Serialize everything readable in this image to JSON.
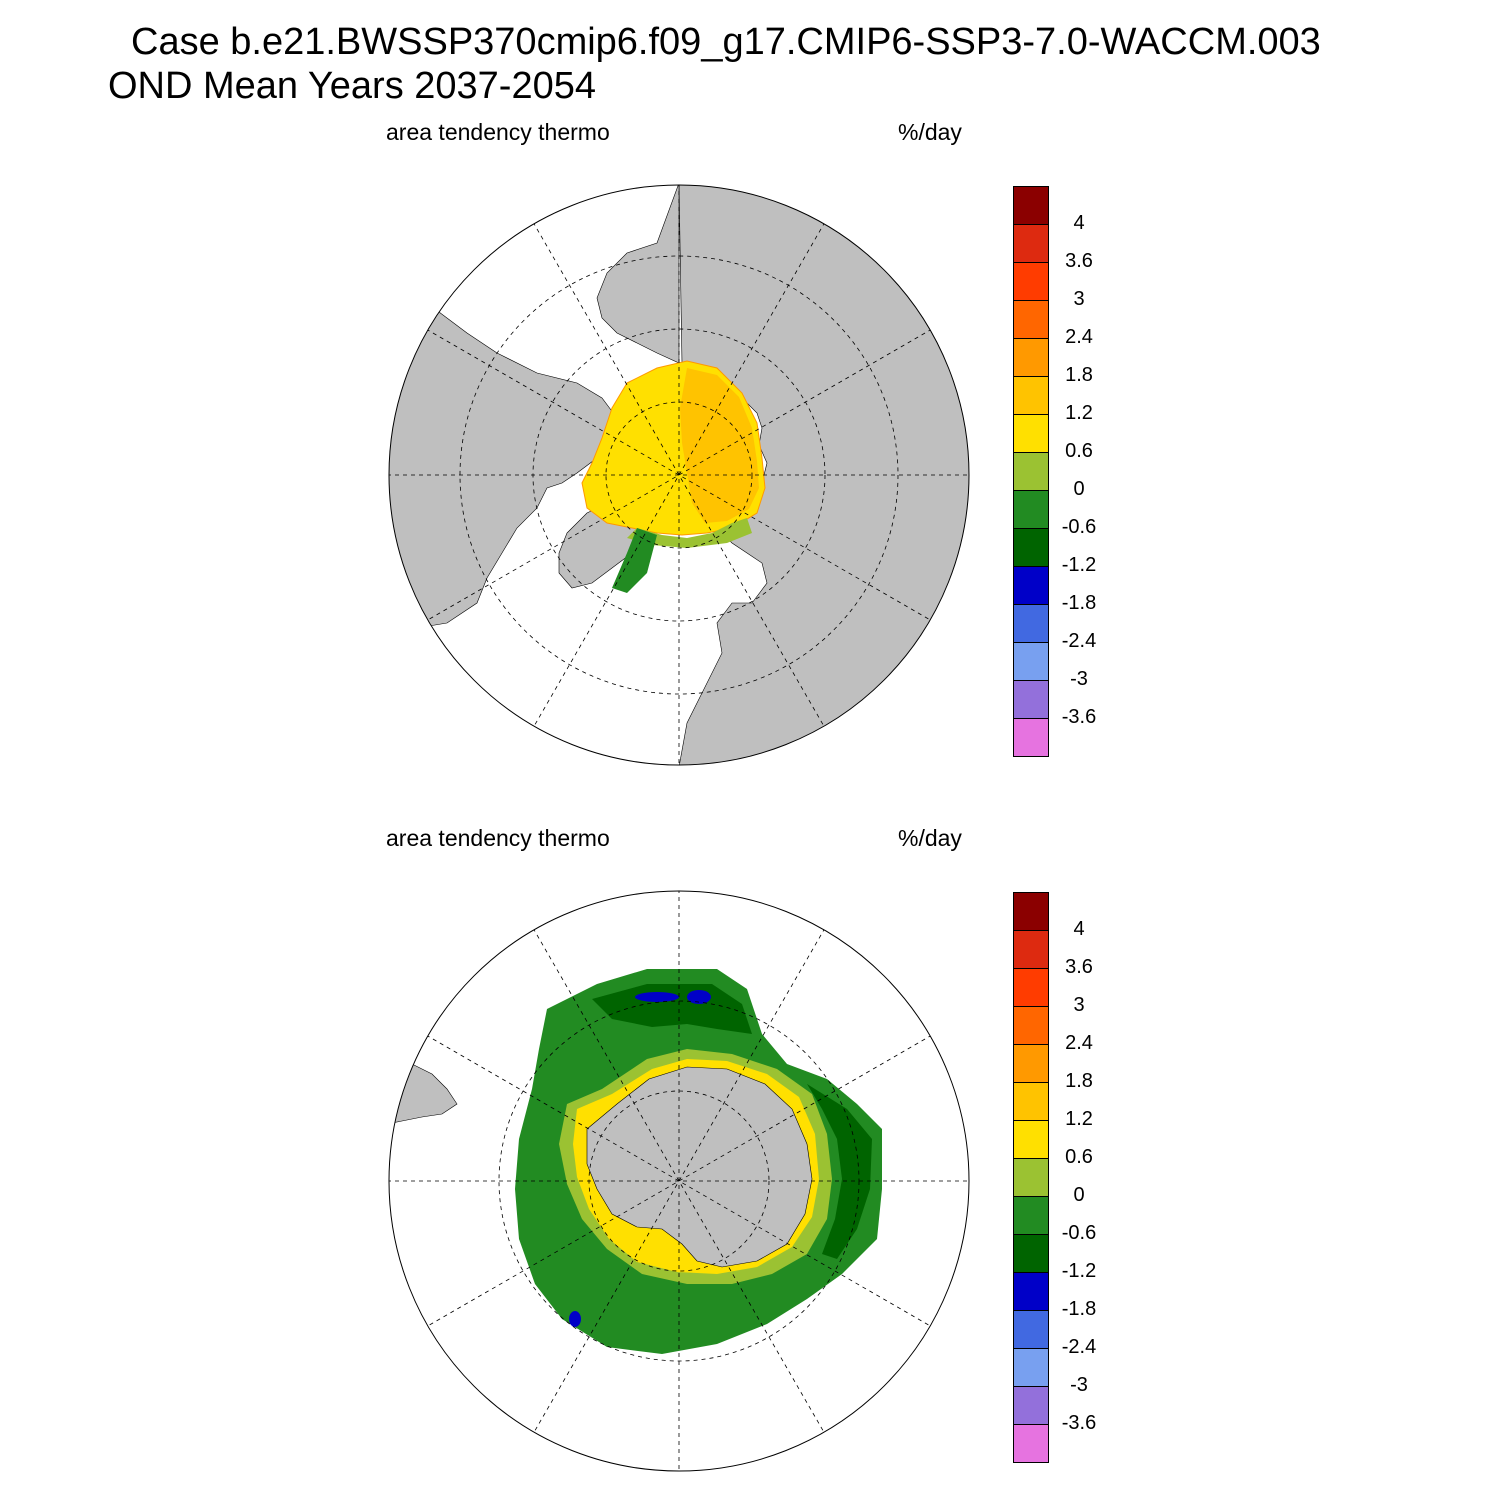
{
  "title": {
    "line1": "Case b.e21.BWSSP370cmip6.f09_g17.CMIP6-SSP3-7.0-WACCM.003",
    "line2": "OND Mean   Years 2037-2054"
  },
  "panels": [
    {
      "id": "north",
      "variable": "area tendency thermo",
      "units": "%/day"
    },
    {
      "id": "south",
      "variable": "area tendency thermo",
      "units": "%/day"
    }
  ],
  "colorbar": {
    "colors": [
      "#8b0000",
      "#dd2a10",
      "#ff3c00",
      "#ff6600",
      "#ff9900",
      "#ffc300",
      "#ffe000",
      "#9bc232",
      "#228b22",
      "#006400",
      "#0000c8",
      "#4169e1",
      "#78a0f0",
      "#9370db",
      "#e673e0"
    ],
    "labels": [
      "4",
      "3.6",
      "3",
      "2.4",
      "1.8",
      "1.2",
      "0.6",
      "0",
      "-0.6",
      "-1.2",
      "-1.8",
      "-2.4",
      "-3",
      "-3.6"
    ]
  },
  "colors": {
    "land": "#bfbfbf",
    "ocean": "#ffffff"
  }
}
